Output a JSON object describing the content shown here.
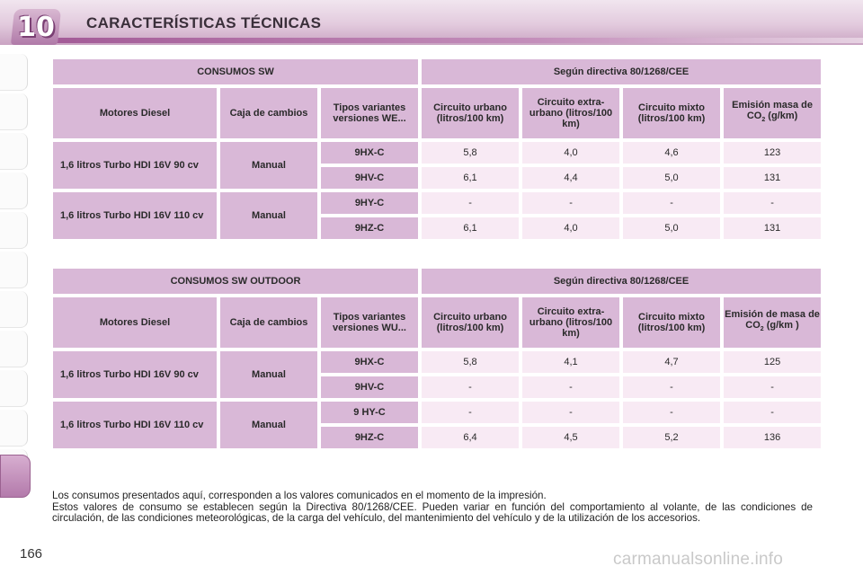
{
  "header": {
    "chapter_number": "10",
    "title": "CARACTERÍSTICAS TÉCNICAS"
  },
  "tables": [
    {
      "section_title": "CONSUMOS SW",
      "directive_title": "Según directiva 80/1268/CEE",
      "col_engine": "Motores Diesel",
      "col_gearbox": "Caja de cambios",
      "col_variants": "Tipos variantes versiones WE...",
      "col_urban": "Circuito urbano (litros/100 km)",
      "col_extra_urban": "Circuito extra-urbano (litros/100 km)",
      "col_mixed": "Circuito mixto (litros/100 km)",
      "col_emission_a": "Emisión masa de",
      "col_emission_co": "CO",
      "col_emission_sub": "2",
      "col_emission_unit": " (g/km)",
      "groups": [
        {
          "engine": "1,6 litros Turbo HDI 16V 90 cv",
          "gearbox": "Manual",
          "rows": [
            {
              "variant": "9HX-C",
              "urban": "5,8",
              "extra_urban": "4,0",
              "mixed": "4,6",
              "co2": "123"
            },
            {
              "variant": "9HV-C",
              "urban": "6,1",
              "extra_urban": "4,4",
              "mixed": "5,0",
              "co2": "131"
            }
          ]
        },
        {
          "engine": "1,6 litros Turbo HDI 16V 110 cv",
          "gearbox": "Manual",
          "rows": [
            {
              "variant": "9HY-C",
              "urban": "-",
              "extra_urban": "-",
              "mixed": "-",
              "co2": "-"
            },
            {
              "variant": "9HZ-C",
              "urban": "6,1",
              "extra_urban": "4,0",
              "mixed": "5,0",
              "co2": "131"
            }
          ]
        }
      ]
    },
    {
      "section_title": "CONSUMOS SW OUTDOOR",
      "directive_title": "Según directiva 80/1268/CEE",
      "col_engine": "Motores Diesel",
      "col_gearbox": "Caja de cambios",
      "col_variants": "Tipos variantes versiones WU...",
      "col_urban": "Circuito urbano (litros/100 km)",
      "col_extra_urban": "Circuito extra-urbano (litros/100 km)",
      "col_mixed": "Circuito mixto (litros/100 km)",
      "col_emission_a": "Emisión de masa de",
      "col_emission_co": "CO",
      "col_emission_sub": "2",
      "col_emission_unit": " (g/km )",
      "groups": [
        {
          "engine": "1,6 litros Turbo HDI 16V 90 cv",
          "gearbox": "Manual",
          "rows": [
            {
              "variant": "9HX-C",
              "urban": "5,8",
              "extra_urban": "4,1",
              "mixed": "4,7",
              "co2": "125"
            },
            {
              "variant": "9HV-C",
              "urban": "-",
              "extra_urban": "-",
              "mixed": "-",
              "co2": "-"
            }
          ]
        },
        {
          "engine": "1,6 litros Turbo HDI 16V 110 cv",
          "gearbox": "Manual",
          "rows": [
            {
              "variant": "9 HY-C",
              "urban": "-",
              "extra_urban": "-",
              "mixed": "-",
              "co2": "-"
            },
            {
              "variant": "9HZ-C",
              "urban": "6,4",
              "extra_urban": "4,5",
              "mixed": "5,2",
              "co2": "136"
            }
          ]
        }
      ]
    }
  ],
  "footer": {
    "note_line1": "Los consumos presentados aquí, corresponden a los valores comunicados en el momento de la impresión.",
    "note_line2": "Estos valores de consumo se establecen según la Directiva 80/1268/CEE. Pueden variar en función del comportamiento al volante, de las condiciones de circulación, de las condiciones meteorológicas, de la carga del vehículo, del mantenimiento del vehículo y de la utilización de los accesorios.",
    "page_number": "166",
    "watermark": "carmanualsonline.info"
  },
  "colors": {
    "header_accent": "#a35b97",
    "cell_header": "#d9b8d7",
    "cell_value": "#f8eaf4"
  }
}
